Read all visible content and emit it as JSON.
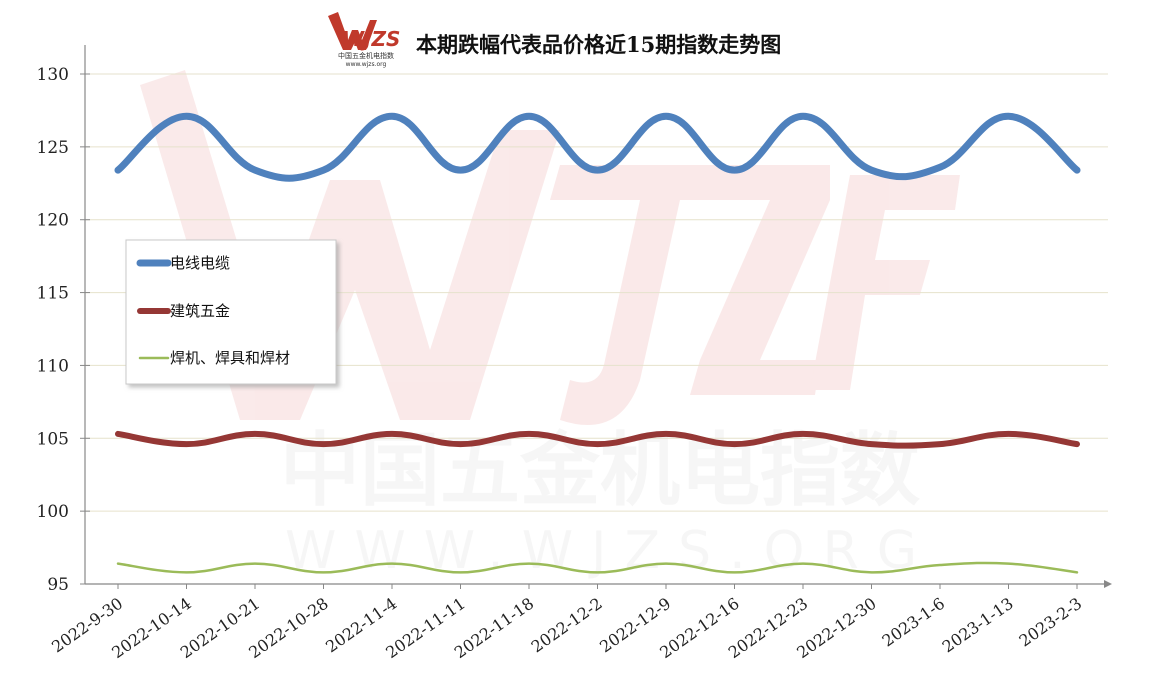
{
  "chart_data": {
    "type": "line",
    "title": "本期跌幅代表品价格近15期指数走势图",
    "logo_text": "WJZS",
    "logo_subtext": "中国五金机电指数",
    "logo_url": "www.wjzs.org",
    "watermark_text": "中国五金机电指数",
    "watermark_url": "WWW.WJZS.ORG",
    "categories": [
      "2022-9-30",
      "2022-10-14",
      "2022-10-21",
      "2022-10-28",
      "2022-11-4",
      "2022-11-11",
      "2022-11-18",
      "2022-12-2",
      "2022-12-9",
      "2022-12-16",
      "2022-12-23",
      "2022-12-30",
      "2023-1-6",
      "2023-1-13",
      "2023-2-3"
    ],
    "ylim": [
      95,
      130
    ],
    "yticks": [
      "95",
      "100",
      "105",
      "110",
      "115",
      "120",
      "125",
      "130"
    ],
    "grid": true,
    "legend_position": "left",
    "series": [
      {
        "name": "电线电缆",
        "color": "#4f81bd",
        "values": [
          123.4,
          127.1,
          123.4,
          123.4,
          127.1,
          123.4,
          127.1,
          123.4,
          127.1,
          123.4,
          127.1,
          123.4,
          123.6,
          127.1,
          123.4
        ]
      },
      {
        "name": "建筑五金",
        "color": "#953735",
        "values": [
          105.3,
          104.6,
          105.3,
          104.6,
          105.3,
          104.6,
          105.3,
          104.6,
          105.3,
          104.6,
          105.3,
          104.6,
          104.6,
          105.3,
          104.6
        ]
      },
      {
        "name": "焊机、焊具和焊材",
        "color": "#9bbb59",
        "values": [
          96.4,
          95.8,
          96.4,
          95.8,
          96.4,
          95.8,
          96.4,
          95.8,
          96.4,
          95.8,
          96.4,
          95.8,
          96.3,
          96.4,
          95.8
        ]
      }
    ]
  }
}
